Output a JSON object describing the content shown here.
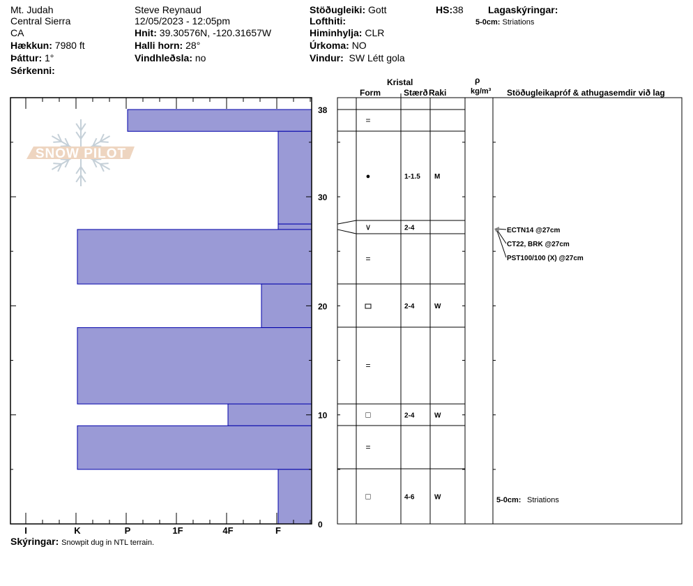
{
  "header": {
    "location": "Mt. Judah",
    "range": "Central Sierra",
    "state": "CA",
    "elevation_label": "Hækkun:",
    "elevation": "7980 ft",
    "aspect_label": "Þáttur:",
    "aspect": "1°",
    "features_label": "Sérkenni:",
    "observer": "Steve Reynaud",
    "datetime": "12/05/2023 - 12:05pm",
    "coords_label": "Hnit:",
    "coords": "39.30576N, -120.31657W",
    "slope_label": "Halli horn:",
    "slope": "28°",
    "windload_label": "Vindhleðsla:",
    "windload": "no",
    "stability_label": "Stöðugleiki:",
    "stability": "Gott",
    "airtemp_label": "Lofthiti:",
    "sky_label": "Himinhylja:",
    "sky": "CLR",
    "precip_label": "Úrkoma:",
    "precip": "NO",
    "wind_label": "Vindur:",
    "wind": "SW Létt gola",
    "hs_label": "HS:",
    "hs": "38",
    "layer_notes_label": "Lagaskýringar:",
    "layer_note_range": "5-0cm:",
    "layer_note_text": "Striations"
  },
  "footer": {
    "notes_label": "Skýringar:",
    "notes": "Snowpit dug in NTL terrain."
  },
  "table_headers": {
    "crystal": "Kristal",
    "form": "Form",
    "size": "Stærð",
    "moisture": "Raki",
    "rho": "ρ",
    "density_unit": "kg/m³",
    "comments": "Stöðugleikapróf & athugasemdir við lag"
  },
  "stability_tests": [
    "ECTN14 @27cm",
    "CT22, BRK @27cm",
    "PST100/100 (X) @27cm"
  ],
  "layer_comment": {
    "range": "5-0cm:",
    "text": "Striations"
  },
  "logo": {
    "text": "SNOW PILOT"
  },
  "colors": {
    "bar_fill": "#9a9ad6",
    "bar_stroke": "#0000aa",
    "logo_band": "#eed5c0",
    "logo_flake": "#c5d0d8",
    "arrow": "#888888"
  },
  "chart_data": {
    "type": "bar",
    "orientation": "horizontal",
    "xlabel": "",
    "ylabel": "",
    "x_ticks": [
      "I",
      "K",
      "P",
      "1F",
      "4F",
      "F"
    ],
    "y_ticks": [
      0,
      10,
      20,
      30,
      38
    ],
    "ylim": [
      0,
      38
    ],
    "layers": [
      {
        "top": 38,
        "bottom": 36,
        "hardness": "P",
        "form": "=",
        "size": "",
        "moisture": ""
      },
      {
        "top": 36,
        "bottom": 27.5,
        "hardness": "F",
        "form": "●",
        "size": "1-1.5",
        "moisture": "M"
      },
      {
        "top": 27.5,
        "bottom": 27,
        "hardness": "F",
        "form": "∨",
        "size": "2-4",
        "moisture": ""
      },
      {
        "top": 27,
        "bottom": 22,
        "hardness": "K",
        "form": "=",
        "size": "",
        "moisture": ""
      },
      {
        "top": 22,
        "bottom": 18,
        "hardness": "F-",
        "form": "lock",
        "size": "2-4",
        "moisture": "W"
      },
      {
        "top": 18,
        "bottom": 11,
        "hardness": "K",
        "form": "=",
        "size": "",
        "moisture": ""
      },
      {
        "top": 11,
        "bottom": 9,
        "hardness": "4F",
        "form": "□",
        "size": "2-4",
        "moisture": "W"
      },
      {
        "top": 9,
        "bottom": 5,
        "hardness": "K",
        "form": "=",
        "size": "",
        "moisture": ""
      },
      {
        "top": 5,
        "bottom": 0,
        "hardness": "F",
        "form": "□",
        "size": "4-6",
        "moisture": "W"
      }
    ]
  }
}
